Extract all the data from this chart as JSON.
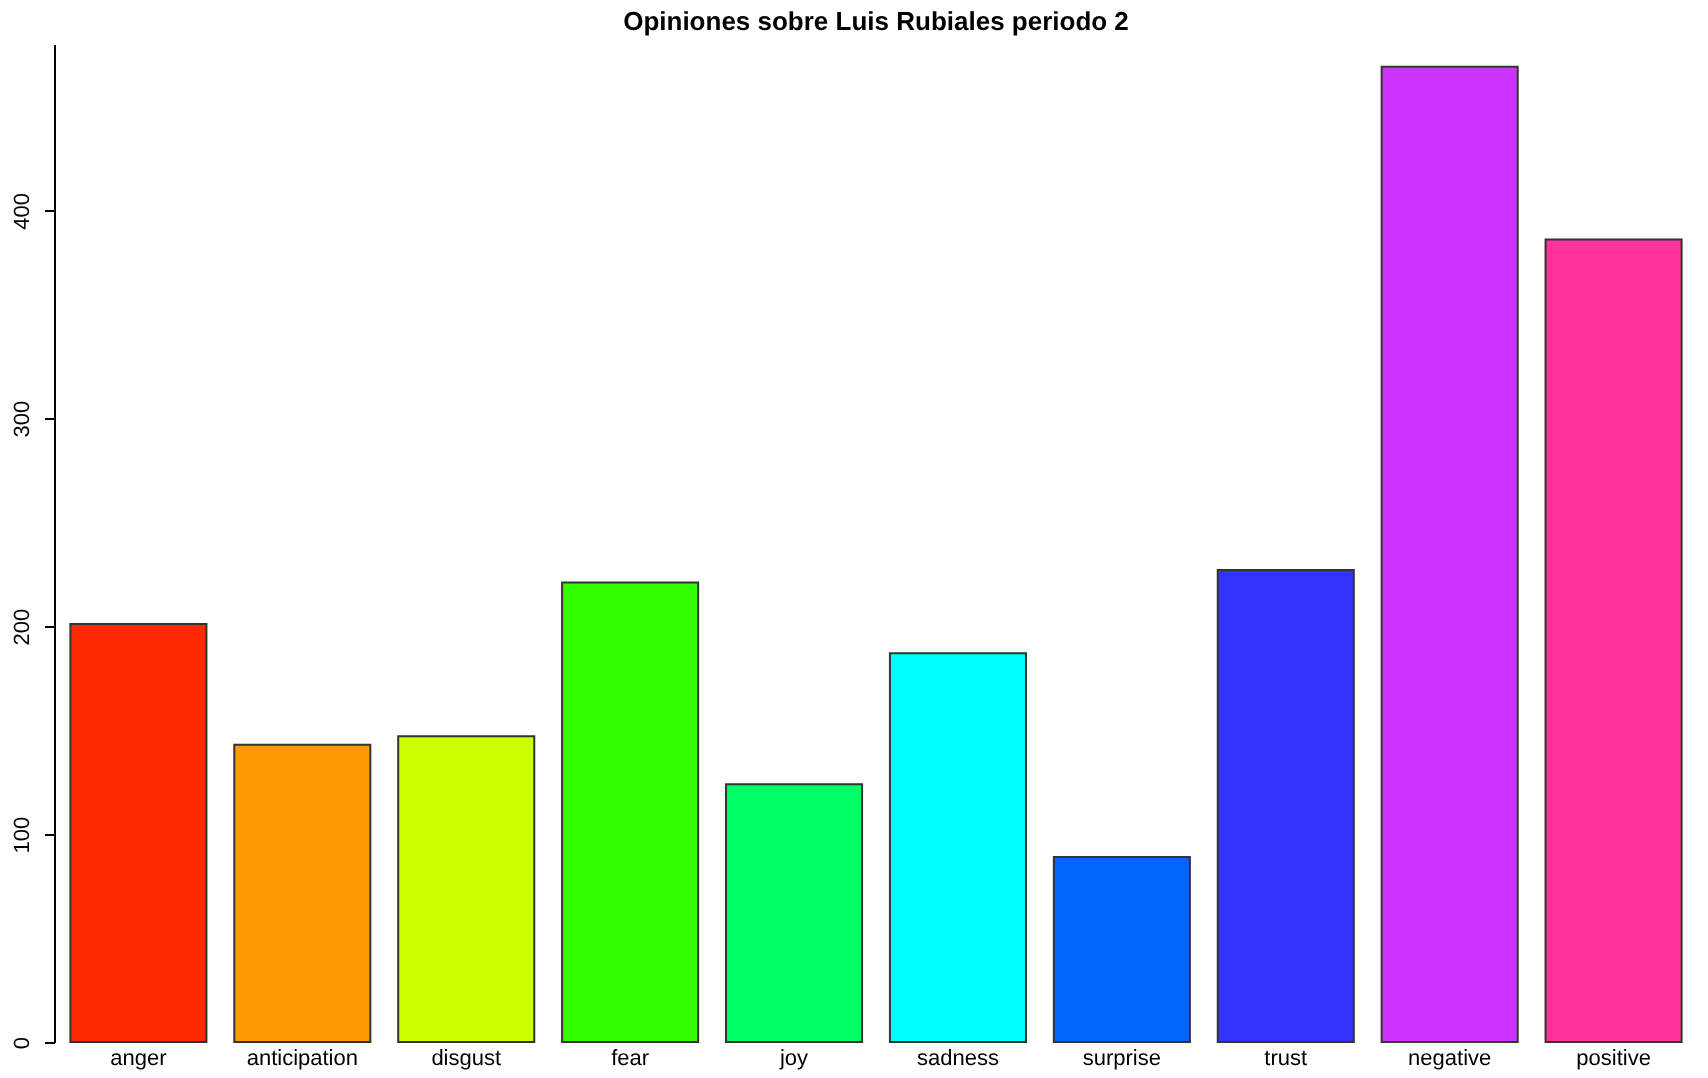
{
  "chart_data": {
    "type": "bar",
    "title": "Opiniones sobre Luis Rubiales periodo 2",
    "categories": [
      "anger",
      "anticipation",
      "disgust",
      "fear",
      "joy",
      "sadness",
      "surprise",
      "trust",
      "negative",
      "positive"
    ],
    "values": [
      201,
      143,
      147,
      221,
      124,
      187,
      89,
      227,
      469,
      386
    ],
    "colors": [
      "#ff2a00",
      "#ff9900",
      "#ccff00",
      "#33ff00",
      "#00ff66",
      "#00ffff",
      "#0066ff",
      "#3333ff",
      "#cc33ff",
      "#ff3399"
    ],
    "ylim": [
      0,
      480
    ],
    "yticks": [
      0,
      100,
      200,
      300,
      400
    ],
    "grid": false
  }
}
